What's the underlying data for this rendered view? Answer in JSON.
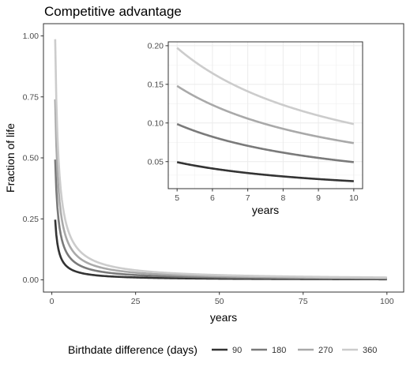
{
  "chart_data": [
    {
      "type": "line",
      "title": "Competitive advantage",
      "xlabel": "years",
      "ylabel": "Fraction of life",
      "xlim": [
        -2.5,
        105
      ],
      "ylim": [
        -0.05,
        1.05
      ],
      "x_ticks": [
        0,
        25,
        50,
        75,
        100
      ],
      "y_ticks": [
        0.0,
        0.25,
        0.5,
        0.75,
        1.0
      ],
      "x_tick_labels": [
        "0",
        "25",
        "50",
        "75",
        "100"
      ],
      "y_tick_labels": [
        "0.00",
        "0.25",
        "0.50",
        "0.75",
        "1.00"
      ],
      "x_range": [
        1,
        100
      ],
      "grid": false,
      "formula": "y = days / (365 * x)",
      "series": [
        {
          "name": "90",
          "days": 90,
          "color": "#333333"
        },
        {
          "name": "180",
          "days": 180,
          "color": "#7a7a7a"
        },
        {
          "name": "270",
          "days": 270,
          "color": "#a9a9a9"
        },
        {
          "name": "360",
          "days": 360,
          "color": "#cccccc"
        }
      ]
    },
    {
      "type": "line",
      "title": "",
      "xlabel": "years",
      "ylabel": "",
      "xlim": [
        4.75,
        10.25
      ],
      "ylim": [
        0.015,
        0.205
      ],
      "x_ticks": [
        5,
        6,
        7,
        8,
        9,
        10
      ],
      "y_ticks": [
        0.05,
        0.1,
        0.15,
        0.2
      ],
      "x_tick_labels": [
        "5",
        "6",
        "7",
        "8",
        "9",
        "10"
      ],
      "y_tick_labels": [
        "0.05",
        "0.10",
        "0.15",
        "0.20"
      ],
      "x_range": [
        5,
        10
      ],
      "grid": true,
      "formula": "y = days / (365 * x)",
      "series": [
        {
          "name": "90",
          "days": 90,
          "color": "#333333"
        },
        {
          "name": "180",
          "days": 180,
          "color": "#7a7a7a"
        },
        {
          "name": "270",
          "days": 270,
          "color": "#a9a9a9"
        },
        {
          "name": "360",
          "days": 360,
          "color": "#cccccc"
        }
      ]
    }
  ],
  "legend": {
    "title": "Birthdate difference (days)",
    "position": "bottom",
    "items": [
      {
        "label": "90",
        "color": "#333333"
      },
      {
        "label": "180",
        "color": "#7a7a7a"
      },
      {
        "label": "270",
        "color": "#a9a9a9"
      },
      {
        "label": "360",
        "color": "#cccccc"
      }
    ]
  }
}
